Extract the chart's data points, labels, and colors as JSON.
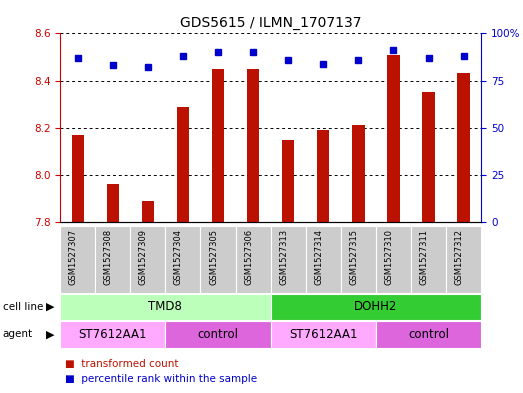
{
  "title": "GDS5615 / ILMN_1707137",
  "samples": [
    "GSM1527307",
    "GSM1527308",
    "GSM1527309",
    "GSM1527304",
    "GSM1527305",
    "GSM1527306",
    "GSM1527313",
    "GSM1527314",
    "GSM1527315",
    "GSM1527310",
    "GSM1527311",
    "GSM1527312"
  ],
  "transformed_counts": [
    8.17,
    7.96,
    7.89,
    8.29,
    8.45,
    8.45,
    8.15,
    8.19,
    8.21,
    8.51,
    8.35,
    8.43
  ],
  "percentile_ranks": [
    87,
    83,
    82,
    88,
    90,
    90,
    86,
    84,
    86,
    91,
    87,
    88
  ],
  "ylim_left": [
    7.8,
    8.6
  ],
  "ylim_right": [
    0,
    100
  ],
  "yticks_left": [
    7.8,
    8.0,
    8.2,
    8.4,
    8.6
  ],
  "yticks_right": [
    0,
    25,
    50,
    75,
    100
  ],
  "bar_color": "#bb1100",
  "dot_color": "#0000cc",
  "cell_line_groups": [
    {
      "label": "TMD8",
      "start": 0,
      "end": 6,
      "color": "#bbffbb"
    },
    {
      "label": "DOHH2",
      "start": 6,
      "end": 12,
      "color": "#33cc33"
    }
  ],
  "agent_groups": [
    {
      "label": "ST7612AA1",
      "start": 0,
      "end": 3,
      "color": "#ffaaff"
    },
    {
      "label": "control",
      "start": 3,
      "end": 6,
      "color": "#dd66dd"
    },
    {
      "label": "ST7612AA1",
      "start": 6,
      "end": 9,
      "color": "#ffaaff"
    },
    {
      "label": "control",
      "start": 9,
      "end": 12,
      "color": "#dd66dd"
    }
  ],
  "bg_color": "#ffffff",
  "tick_color_left": "#cc0000",
  "tick_color_right": "#0000cc",
  "sample_bg_color": "#cccccc"
}
